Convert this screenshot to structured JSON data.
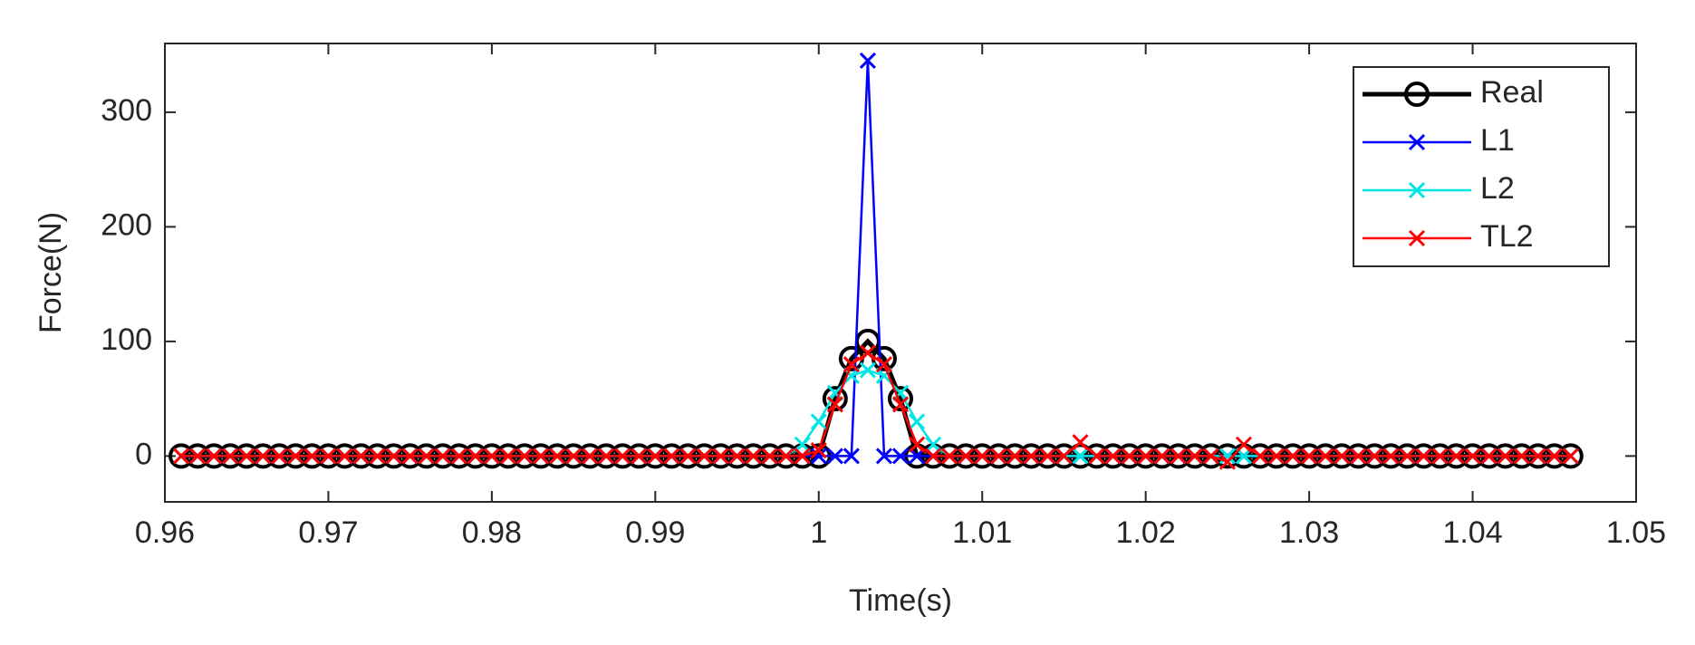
{
  "chart_data": {
    "type": "line",
    "x_label": "Time(s)",
    "y_label": "Force(N)",
    "x": [
      0.961,
      0.962,
      0.963,
      0.964,
      0.965,
      0.966,
      0.967,
      0.968,
      0.969,
      0.97,
      0.971,
      0.972,
      0.973,
      0.974,
      0.975,
      0.976,
      0.977,
      0.978,
      0.979,
      0.98,
      0.981,
      0.982,
      0.983,
      0.984,
      0.985,
      0.986,
      0.987,
      0.988,
      0.989,
      0.99,
      0.991,
      0.992,
      0.993,
      0.994,
      0.995,
      0.996,
      0.997,
      0.998,
      0.999,
      1,
      1.001,
      1.002,
      1.003,
      1.004,
      1.005,
      1.006,
      1.007,
      1.008,
      1.009,
      1.01,
      1.011,
      1.012,
      1.013,
      1.014,
      1.015,
      1.016,
      1.017,
      1.018,
      1.019,
      1.02,
      1.021,
      1.022,
      1.023,
      1.024,
      1.025,
      1.026,
      1.027,
      1.028,
      1.029,
      1.03,
      1.031,
      1.032,
      1.033,
      1.034,
      1.035,
      1.036,
      1.037,
      1.038,
      1.039,
      1.04,
      1.041,
      1.042,
      1.043,
      1.044,
      1.045,
      1.046
    ],
    "series": [
      {
        "name": "Real",
        "color": "#000000",
        "marker": "o",
        "values": [
          0,
          0,
          0,
          0,
          0,
          0,
          0,
          0,
          0,
          0,
          0,
          0,
          0,
          0,
          0,
          0,
          0,
          0,
          0,
          0,
          0,
          0,
          0,
          0,
          0,
          0,
          0,
          0,
          0,
          0,
          0,
          0,
          0,
          0,
          0,
          0,
          0,
          0,
          0,
          0,
          50,
          85,
          100,
          85,
          50,
          0,
          0,
          0,
          0,
          0,
          0,
          0,
          0,
          0,
          0,
          0,
          0,
          0,
          0,
          0,
          0,
          0,
          0,
          0,
          0,
          0,
          0,
          0,
          0,
          0,
          0,
          0,
          0,
          0,
          0,
          0,
          0,
          0,
          0,
          0,
          0,
          0,
          0,
          0,
          0,
          0
        ]
      },
      {
        "name": "L1",
        "color": "#0000ff",
        "marker": "x",
        "values": [
          0,
          0,
          0,
          0,
          0,
          0,
          0,
          0,
          0,
          0,
          0,
          0,
          0,
          0,
          0,
          0,
          0,
          0,
          0,
          0,
          0,
          0,
          0,
          0,
          0,
          0,
          0,
          0,
          0,
          0,
          0,
          0,
          0,
          0,
          0,
          0,
          0,
          0,
          0,
          0,
          0,
          0,
          345,
          0,
          0,
          0,
          0,
          0,
          0,
          0,
          0,
          0,
          0,
          0,
          0,
          0,
          0,
          0,
          0,
          0,
          0,
          0,
          0,
          0,
          0,
          0,
          0,
          0,
          0,
          0,
          0,
          0,
          0,
          0,
          0,
          0,
          0,
          0,
          0,
          0,
          0,
          0,
          0,
          0,
          0,
          0
        ]
      },
      {
        "name": "L2",
        "color": "#00e5e5",
        "marker": "x",
        "values": [
          0,
          0,
          0,
          0,
          0,
          0,
          0,
          0,
          0,
          0,
          0,
          0,
          0,
          0,
          0,
          0,
          0,
          0,
          0,
          0,
          0,
          0,
          0,
          0,
          0,
          0,
          0,
          0,
          0,
          0,
          0,
          0,
          0,
          0,
          0,
          0,
          0,
          0,
          10,
          30,
          55,
          70,
          75,
          70,
          55,
          30,
          10,
          0,
          0,
          0,
          0,
          0,
          0,
          0,
          0,
          0,
          0,
          0,
          0,
          0,
          0,
          0,
          0,
          0,
          0,
          0,
          0,
          0,
          0,
          0,
          0,
          0,
          0,
          0,
          0,
          0,
          0,
          0,
          0,
          0,
          0,
          0,
          0,
          0,
          0,
          0
        ]
      },
      {
        "name": "TL2",
        "color": "#ff0000",
        "marker": "x",
        "values": [
          0,
          0,
          0,
          0,
          0,
          0,
          0,
          0,
          0,
          0,
          0,
          0,
          0,
          0,
          0,
          0,
          0,
          0,
          0,
          0,
          0,
          0,
          0,
          0,
          0,
          0,
          0,
          0,
          0,
          0,
          0,
          0,
          0,
          0,
          0,
          0,
          0,
          0,
          0,
          5,
          45,
          80,
          90,
          80,
          45,
          10,
          0,
          0,
          0,
          0,
          0,
          0,
          0,
          0,
          0,
          12,
          0,
          0,
          0,
          0,
          0,
          0,
          0,
          0,
          -5,
          10,
          0,
          0,
          0,
          0,
          0,
          0,
          0,
          0,
          0,
          0,
          0,
          0,
          0,
          0,
          0,
          0,
          0,
          0,
          0,
          0
        ]
      }
    ],
    "xlim": [
      0.96,
      1.05
    ],
    "xticks": [
      0.96,
      0.97,
      0.98,
      0.99,
      1,
      1.01,
      1.02,
      1.03,
      1.04,
      1.05
    ],
    "ylim": [
      -40,
      360
    ],
    "yticks": [
      0,
      100,
      200,
      300
    ],
    "grid": false,
    "legend": "northeast"
  }
}
